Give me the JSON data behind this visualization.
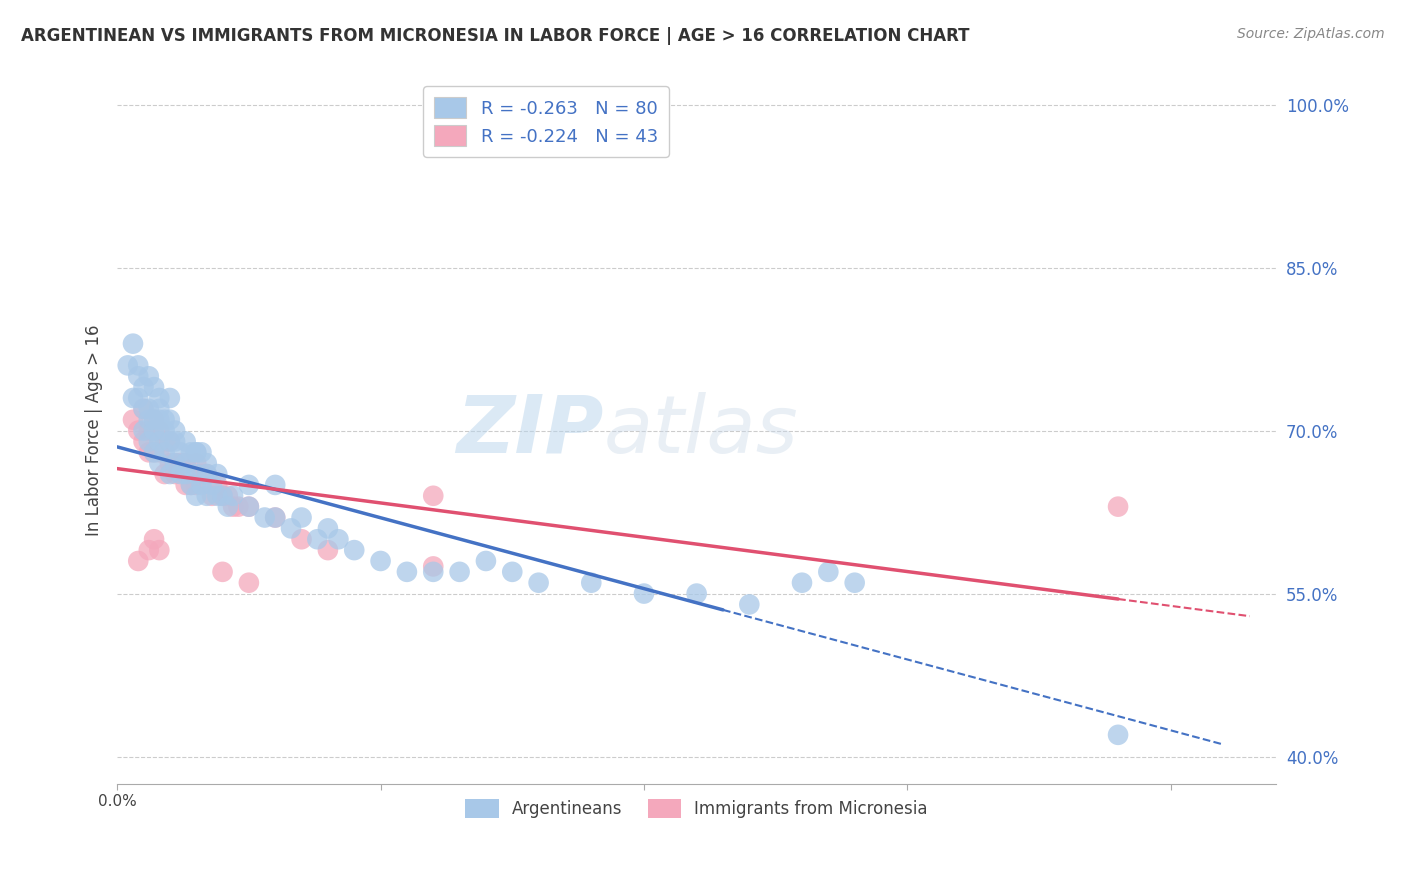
{
  "title": "ARGENTINEAN VS IMMIGRANTS FROM MICRONESIA IN LABOR FORCE | AGE > 16 CORRELATION CHART",
  "source": "Source: ZipAtlas.com",
  "ylabel": "In Labor Force | Age > 16",
  "xlabel": "",
  "legend_label_1": "Argentineans",
  "legend_label_2": "Immigrants from Micronesia",
  "r1": -0.263,
  "n1": 80,
  "r2": -0.224,
  "n2": 43,
  "color1": "#A8C8E8",
  "color2": "#F4A8BC",
  "line_color1": "#4472C4",
  "line_color2": "#E05070",
  "bg_color": "#FFFFFF",
  "grid_color": "#CCCCCC",
  "watermark_zip": "ZIP",
  "watermark_atlas": "atlas",
  "xmin": 0.0,
  "xmax": 0.22,
  "ymin": 0.375,
  "ymax": 1.025,
  "yticks": [
    0.4,
    0.55,
    0.7,
    0.85,
    1.0
  ],
  "ytick_labels": [
    "40.0%",
    "55.0%",
    "70.0%",
    "85.0%",
    "100.0%"
  ],
  "blue_line_x0": 0.0,
  "blue_line_y0": 0.685,
  "blue_line_x1": 0.115,
  "blue_line_y1": 0.535,
  "blue_line_xdash_end": 0.21,
  "pink_line_x0": 0.0,
  "pink_line_y0": 0.665,
  "pink_line_x1": 0.19,
  "pink_line_y1": 0.545,
  "pink_line_xdash_end": 0.215,
  "blue_points_x": [
    0.002,
    0.003,
    0.004,
    0.004,
    0.005,
    0.005,
    0.005,
    0.006,
    0.006,
    0.006,
    0.007,
    0.007,
    0.007,
    0.008,
    0.008,
    0.008,
    0.008,
    0.009,
    0.009,
    0.01,
    0.01,
    0.01,
    0.01,
    0.011,
    0.011,
    0.012,
    0.012,
    0.013,
    0.013,
    0.014,
    0.014,
    0.015,
    0.015,
    0.015,
    0.016,
    0.016,
    0.017,
    0.017,
    0.018,
    0.019,
    0.02,
    0.021,
    0.022,
    0.025,
    0.028,
    0.03,
    0.033,
    0.035,
    0.038,
    0.04,
    0.042,
    0.045,
    0.05,
    0.055,
    0.06,
    0.065,
    0.07,
    0.075,
    0.08,
    0.09,
    0.1,
    0.11,
    0.12,
    0.13,
    0.135,
    0.14,
    0.003,
    0.004,
    0.006,
    0.007,
    0.008,
    0.009,
    0.011,
    0.013,
    0.015,
    0.017,
    0.019,
    0.025,
    0.03,
    0.19
  ],
  "blue_points_y": [
    0.76,
    0.73,
    0.73,
    0.75,
    0.72,
    0.74,
    0.7,
    0.71,
    0.69,
    0.72,
    0.7,
    0.68,
    0.71,
    0.67,
    0.69,
    0.71,
    0.73,
    0.68,
    0.7,
    0.69,
    0.66,
    0.71,
    0.73,
    0.67,
    0.69,
    0.66,
    0.68,
    0.67,
    0.66,
    0.65,
    0.68,
    0.66,
    0.68,
    0.64,
    0.65,
    0.68,
    0.66,
    0.64,
    0.65,
    0.64,
    0.64,
    0.63,
    0.64,
    0.63,
    0.62,
    0.62,
    0.61,
    0.62,
    0.6,
    0.61,
    0.6,
    0.59,
    0.58,
    0.57,
    0.57,
    0.57,
    0.58,
    0.57,
    0.56,
    0.56,
    0.55,
    0.55,
    0.54,
    0.56,
    0.57,
    0.56,
    0.78,
    0.76,
    0.75,
    0.74,
    0.72,
    0.71,
    0.7,
    0.69,
    0.68,
    0.67,
    0.66,
    0.65,
    0.65,
    0.42
  ],
  "pink_points_x": [
    0.003,
    0.004,
    0.005,
    0.005,
    0.006,
    0.006,
    0.007,
    0.007,
    0.008,
    0.008,
    0.009,
    0.009,
    0.01,
    0.01,
    0.011,
    0.011,
    0.012,
    0.013,
    0.013,
    0.014,
    0.015,
    0.015,
    0.016,
    0.017,
    0.018,
    0.019,
    0.02,
    0.021,
    0.022,
    0.023,
    0.025,
    0.03,
    0.035,
    0.04,
    0.06,
    0.19,
    0.004,
    0.006,
    0.007,
    0.008,
    0.02,
    0.025,
    0.06
  ],
  "pink_points_y": [
    0.71,
    0.7,
    0.69,
    0.72,
    0.68,
    0.7,
    0.68,
    0.71,
    0.7,
    0.68,
    0.69,
    0.66,
    0.67,
    0.69,
    0.67,
    0.66,
    0.67,
    0.67,
    0.65,
    0.65,
    0.65,
    0.67,
    0.66,
    0.66,
    0.64,
    0.65,
    0.64,
    0.64,
    0.63,
    0.63,
    0.63,
    0.62,
    0.6,
    0.59,
    0.64,
    0.63,
    0.58,
    0.59,
    0.6,
    0.59,
    0.57,
    0.56,
    0.575
  ]
}
